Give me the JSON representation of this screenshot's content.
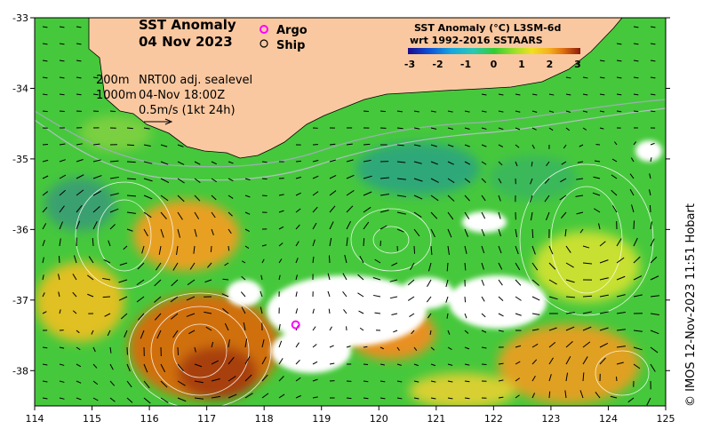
{
  "title": {
    "line1": "SST Anomaly",
    "line2": "04 Nov 2023"
  },
  "legend": {
    "argo": "Argo",
    "ship": "Ship"
  },
  "colorbar": {
    "title1": "SST Anomaly (°C) L3SM-6d",
    "title2": "wrt 1992-2016 SSTAARS",
    "ticks": [
      "-3",
      "-2",
      "-1",
      "0",
      "1",
      "2",
      "3"
    ],
    "colors": [
      "#1a0a8c",
      "#0b4fd6",
      "#16a6e0",
      "#2bc8b4",
      "#33cc33",
      "#9ee02a",
      "#f0e020",
      "#f5b020",
      "#e07010",
      "#c04010",
      "#8a1a0a"
    ]
  },
  "annotations": {
    "contour_200": "200m",
    "contour_1000": "1000m",
    "current_source": "NRT00 adj. sealevel",
    "current_time": "04-Nov 18:00Z",
    "scale": "0.5m/s (1kt 24h)"
  },
  "axes": {
    "x_ticks": [
      "114",
      "115",
      "116",
      "117",
      "118",
      "119",
      "120",
      "121",
      "122",
      "123",
      "124",
      "125"
    ],
    "y_ticks": [
      "-33",
      "-34",
      "-35",
      "-36",
      "-37",
      "-38"
    ],
    "xlim": [
      114,
      125
    ],
    "ylim": [
      -38.5,
      -33
    ]
  },
  "credit": "© IMOS 12-Nov-2023 11:51 Hobart",
  "map": {
    "land_color": "#fac8a0",
    "argo_float": {
      "lon": 118.55,
      "lat": -37.35,
      "color": "#ff00ff"
    }
  }
}
